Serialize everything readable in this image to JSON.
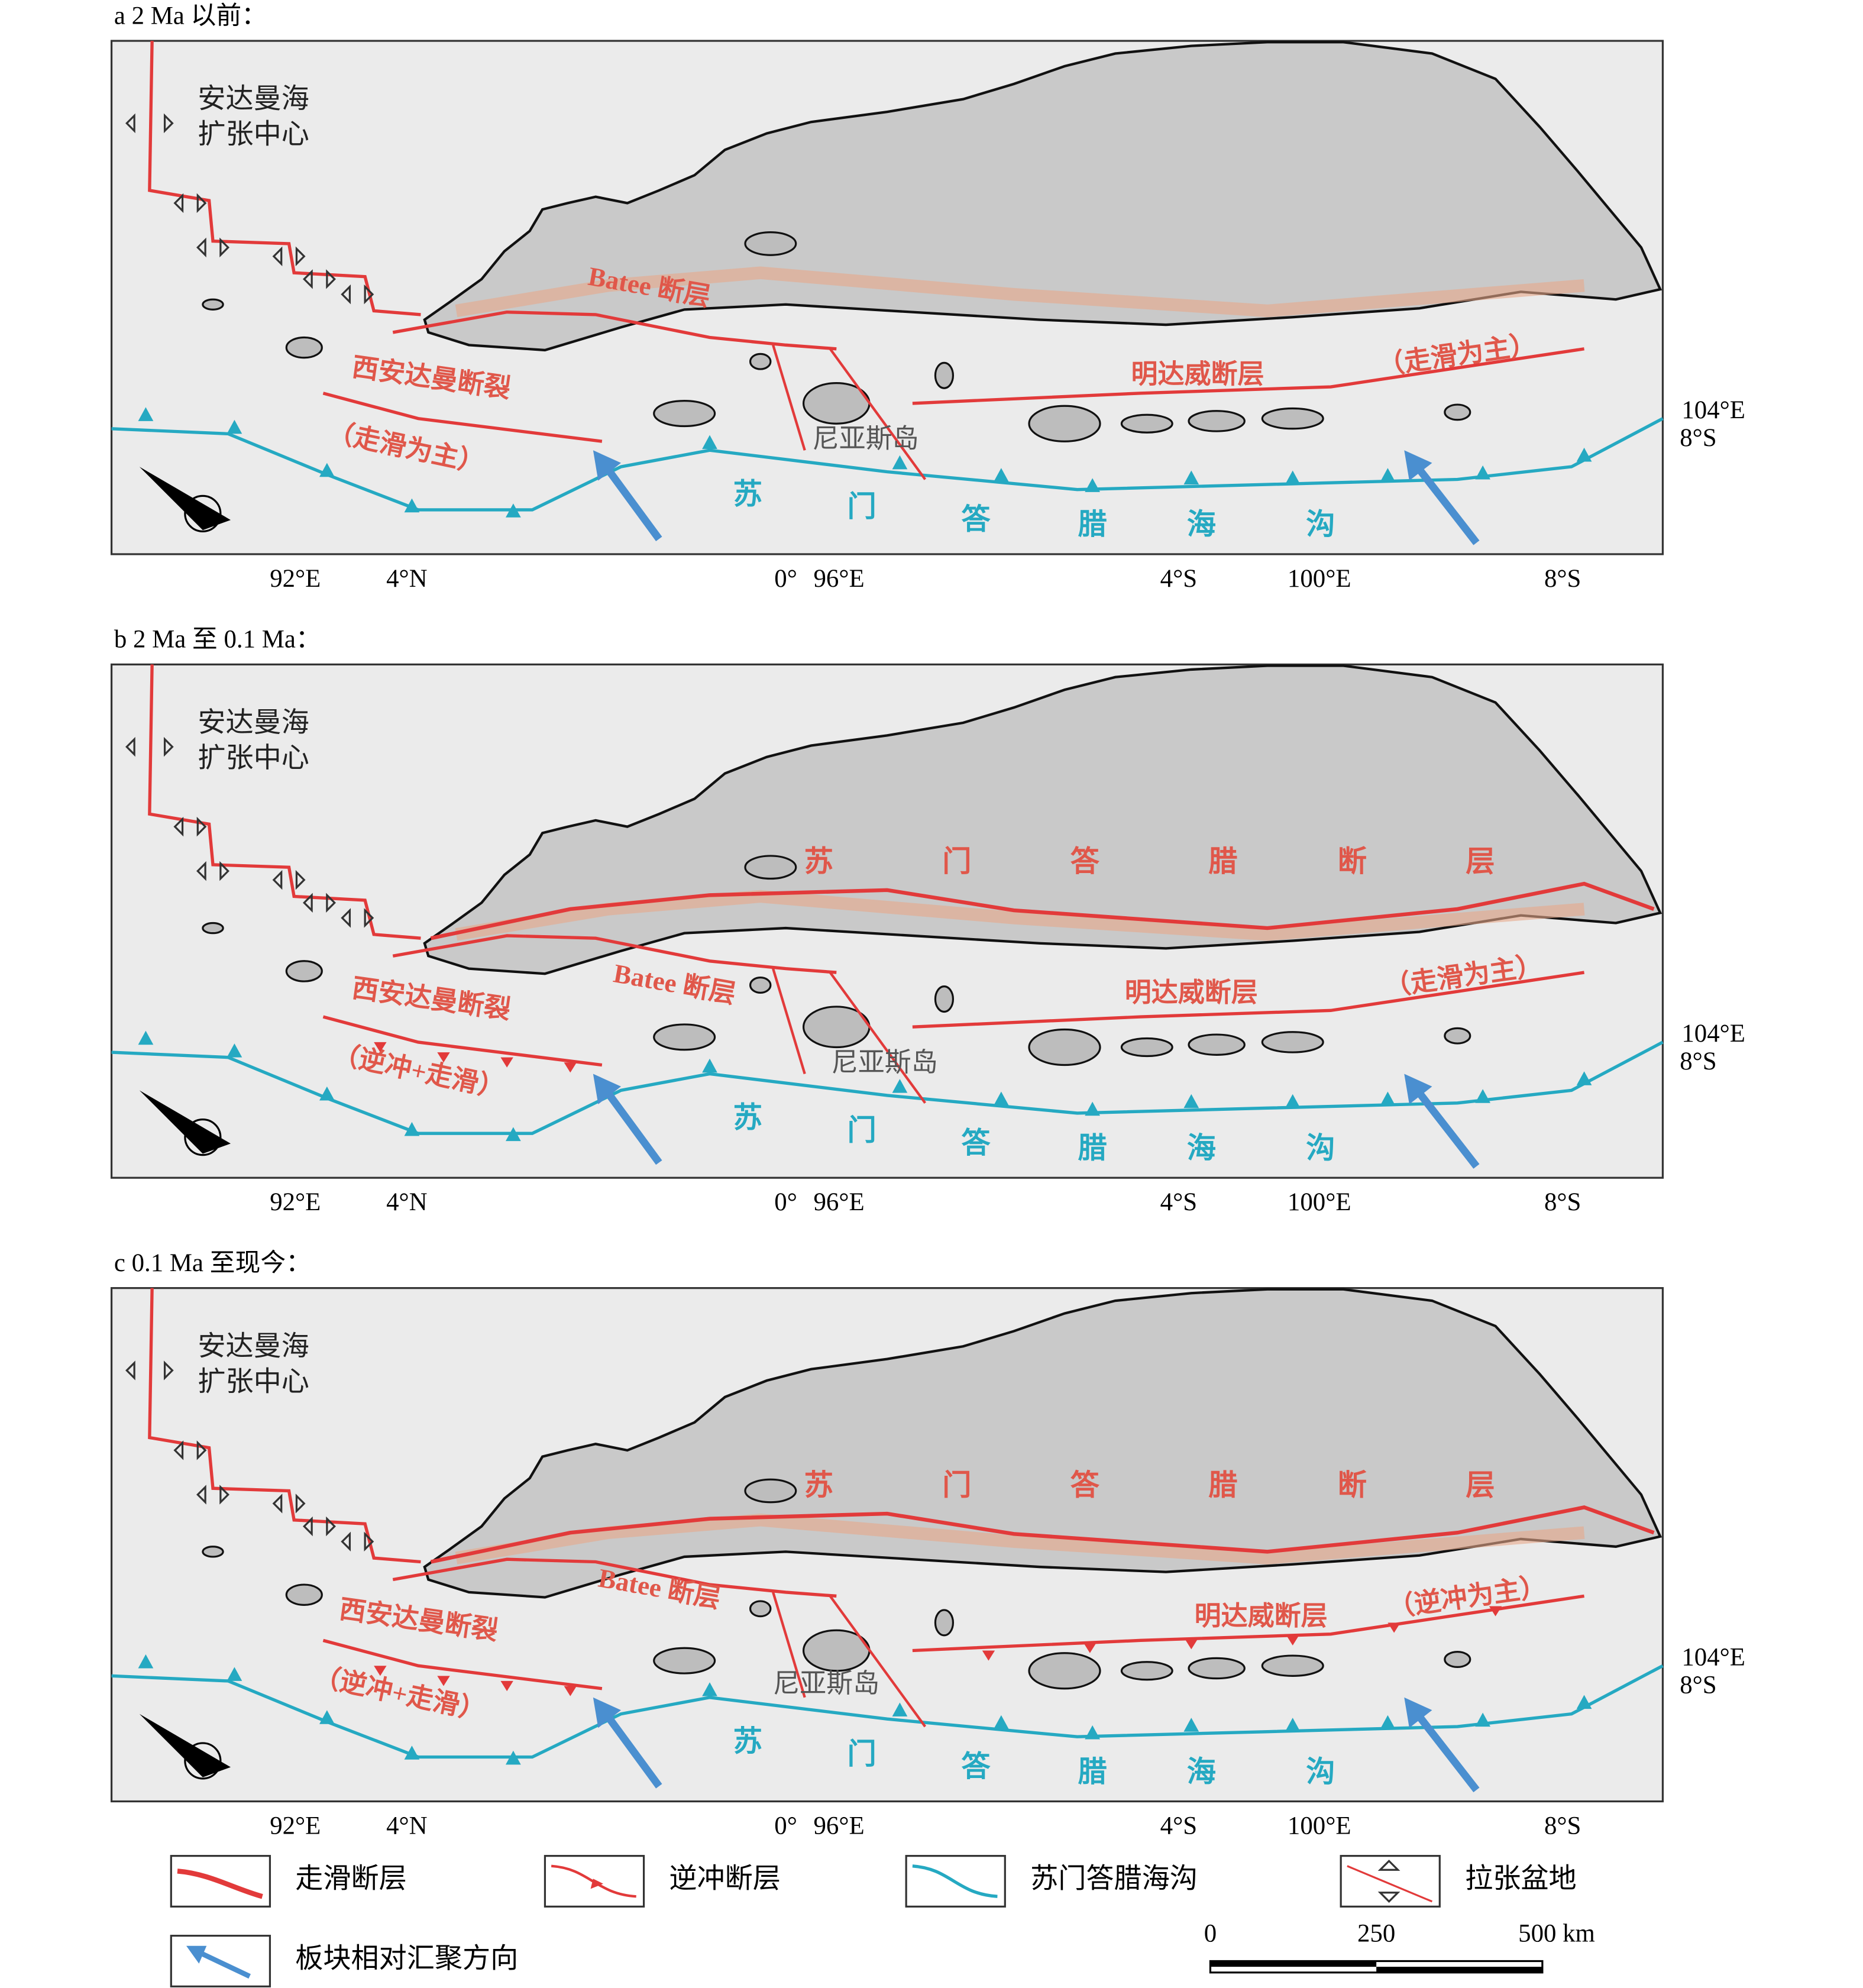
{
  "panels": [
    {
      "title": "a 2 Ma 以前：",
      "spreading_center": [
        "安达曼海",
        "扩张中心"
      ],
      "batee_fault": "Batee 断层",
      "west_andaman_fault": "西安达曼断裂",
      "west_andaman_mode": "（走滑为主）",
      "mentawai_fault": "明达威断层",
      "mentawai_mode": "（走滑为主）",
      "nias_island": "尼亚斯岛",
      "trench": [
        "苏",
        "门",
        "答",
        "腊",
        "海",
        "沟"
      ],
      "bottom_coords": [
        "92°E",
        "4°N",
        "0°",
        "96°E",
        "4°S",
        "100°E",
        "8°S"
      ],
      "right_coords": [
        "104°E",
        "8°S"
      ]
    },
    {
      "title": "b 2 Ma 至 0.1 Ma：",
      "spreading_center": [
        "安达曼海",
        "扩张中心"
      ],
      "sumatra_fault": [
        "苏",
        "门",
        "答",
        "腊",
        "断",
        "层"
      ],
      "batee_fault": "Batee 断层",
      "west_andaman_fault": "西安达曼断裂",
      "west_andaman_mode": "（逆冲+走滑）",
      "mentawai_fault": "明达威断层",
      "mentawai_mode": "（走滑为主）",
      "nias_island": "尼亚斯岛",
      "trench": [
        "苏",
        "门",
        "答",
        "腊",
        "海",
        "沟"
      ],
      "bottom_coords": [
        "92°E",
        "4°N",
        "0°",
        "96°E",
        "4°S",
        "100°E",
        "8°S"
      ],
      "right_coords": [
        "104°E",
        "8°S"
      ]
    },
    {
      "title": "c 0.1 Ma 至现今：",
      "spreading_center": [
        "安达曼海",
        "扩张中心"
      ],
      "sumatra_fault": [
        "苏",
        "门",
        "答",
        "腊",
        "断",
        "层"
      ],
      "batee_fault": "Batee 断层",
      "west_andaman_fault": "西安达曼断裂",
      "west_andaman_mode": "（逆冲+走滑）",
      "mentawai_fault": "明达威断层",
      "mentawai_mode": "（逆冲为主）",
      "nias_island": "尼亚斯岛",
      "trench": [
        "苏",
        "门",
        "答",
        "腊",
        "海",
        "沟"
      ],
      "bottom_coords": [
        "92°E",
        "4°N",
        "0°",
        "96°E",
        "4°S",
        "100°E",
        "8°S"
      ],
      "right_coords": [
        "104°E",
        "8°S"
      ]
    }
  ],
  "legend": {
    "items": [
      "走滑断层",
      "逆冲断层",
      "苏门答腊海沟",
      "拉张盆地",
      "板块相对汇聚方向"
    ]
  },
  "scale_bar": {
    "labels": [
      "0",
      "250",
      "500 km"
    ]
  }
}
